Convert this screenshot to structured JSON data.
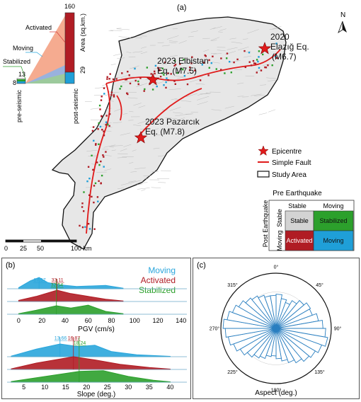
{
  "panel_a": {
    "label": "(a)",
    "north": "N",
    "earthquakes": [
      {
        "name_line1": "2020",
        "name_line2": "Elazığ Eq.",
        "name_line3": "(M6.7)"
      },
      {
        "name_line1": "2023 Elbistan",
        "name_line2": "Eq. (M7.5)"
      },
      {
        "name_line1": "2023 Pazarcık",
        "name_line2": "Eq. (M7.8)"
      }
    ],
    "legend": {
      "epicentre": "Epicentre",
      "fault": "Simple Fault",
      "study_area": "Study Area"
    },
    "scalebar": {
      "ticks": [
        "0",
        "25",
        "50",
        "100 km"
      ]
    },
    "inset": {
      "labels": {
        "activated": "Activated",
        "moving": "Moving",
        "stabilized": "Stabilized"
      },
      "pre_axis": "pre-seismic",
      "post_axis": "post-seismic",
      "area_axis": "Area (sq.km.)",
      "values": {
        "post_top": "160",
        "post_mid": "29",
        "pre_top": "13",
        "pre_low": "8"
      }
    },
    "matrix": {
      "title": "Pre Earthquake",
      "col_headers": [
        "Stable",
        "Moving"
      ],
      "row_title": "Post Earthquake",
      "row_headers": [
        "Stable",
        "Moving"
      ],
      "cells": [
        {
          "label": "Stable",
          "color": "#d3d3d3"
        },
        {
          "label": "Stabilized",
          "color": "#2ca02c"
        },
        {
          "label": "Activated",
          "color": "#b01c24"
        },
        {
          "label": "Moving",
          "color": "#1f9fd8"
        }
      ]
    }
  },
  "panel_b": {
    "label": "(b)",
    "legend": [
      {
        "name": "Moving",
        "color": "#2aa6dc"
      },
      {
        "name": "Activated",
        "color": "#b01c24"
      },
      {
        "name": "Stabilized",
        "color": "#2ca02c"
      }
    ],
    "pgv": {
      "xlabel": "PGV (cm/s)",
      "ticks": [
        "0",
        "20",
        "40",
        "60",
        "80",
        "100",
        "120",
        "140"
      ],
      "xlim": [
        -10,
        145
      ],
      "medians": {
        "moving": "17.57",
        "activated": "33.11",
        "stabilized": "32.54"
      }
    },
    "slope": {
      "xlabel": "Slope (deg.)",
      "ticks": [
        "5",
        "10",
        "15",
        "20",
        "25",
        "30",
        "35",
        "40"
      ],
      "xlim": [
        1,
        44
      ],
      "medians": {
        "moving": "13.66",
        "activated": "16.87",
        "stabilized": "18.24"
      }
    }
  },
  "panel_c": {
    "label": "(c)",
    "xlabel": "Aspect (deg.)",
    "angle_labels": [
      "0°",
      "45°",
      "90°",
      "135°",
      "180°",
      "225°",
      "270°",
      "315°"
    ]
  },
  "chart_data": [
    {
      "type": "area",
      "xlabel": "PGV (cm/s)",
      "series": [
        {
          "name": "Moving",
          "x": [
            0,
            10,
            17.57,
            25,
            35,
            50,
            75,
            90
          ],
          "values": [
            0.1,
            0.7,
            1.0,
            0.55,
            0.35,
            0.2,
            0.3,
            0.05
          ]
        },
        {
          "name": "Activated",
          "x": [
            0,
            15,
            33.11,
            45,
            60,
            75,
            90
          ],
          "values": [
            0.1,
            0.45,
            1.0,
            0.7,
            0.45,
            0.2,
            0.05
          ]
        },
        {
          "name": "Stabilized",
          "x": [
            0,
            15,
            32.54,
            45,
            60,
            75,
            90
          ],
          "values": [
            0.05,
            0.35,
            0.75,
            0.55,
            0.8,
            0.25,
            0.05
          ]
        }
      ],
      "medians": {
        "Moving": 17.57,
        "Activated": 33.11,
        "Stabilized": 32.54
      }
    },
    {
      "type": "area",
      "xlabel": "Slope (deg.)",
      "series": [
        {
          "name": "Moving",
          "x": [
            2,
            8,
            13.66,
            18,
            22,
            26,
            32,
            40
          ],
          "values": [
            0.05,
            0.6,
            1.0,
            0.8,
            0.9,
            0.4,
            0.15,
            0.03
          ]
        },
        {
          "name": "Activated",
          "x": [
            2,
            8,
            16.87,
            22,
            28,
            35,
            40
          ],
          "values": [
            0.05,
            0.5,
            1.0,
            0.75,
            0.4,
            0.15,
            0.03
          ]
        },
        {
          "name": "Stabilized",
          "x": [
            2,
            8,
            18.24,
            24,
            30,
            36,
            40
          ],
          "values": [
            0.05,
            0.35,
            0.85,
            0.9,
            0.45,
            0.15,
            0.03
          ]
        }
      ],
      "medians": {
        "Moving": 13.66,
        "Activated": 16.87,
        "Stabilized": 18.24
      }
    },
    {
      "type": "rose",
      "xlabel": "Aspect (deg.)",
      "bin_width_deg": 10,
      "values": [
        0.62,
        0.55,
        0.5,
        0.58,
        0.66,
        0.72,
        0.7,
        0.78,
        0.85,
        0.9,
        0.95,
        0.88,
        0.82,
        0.78,
        0.72,
        0.66,
        0.6,
        0.55,
        0.5,
        0.52,
        0.58,
        0.62,
        0.68,
        0.75,
        0.82,
        0.88,
        0.92,
        0.96,
        0.9,
        0.84,
        0.78,
        0.72,
        0.68,
        0.64,
        0.6,
        0.6
      ]
    }
  ]
}
